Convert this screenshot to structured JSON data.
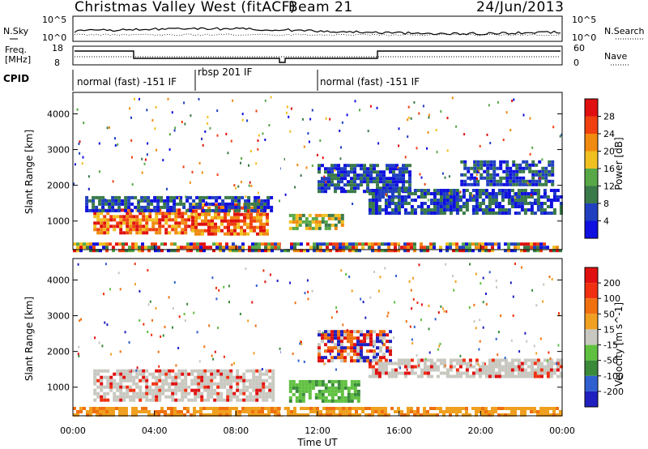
{
  "header": {
    "title": "Christmas Valley West (fitACF)",
    "beam": "Beam 21",
    "date": "24/Jun/2013"
  },
  "panels": {
    "noise": {
      "left_label": "N.Sky",
      "right_label": "N.Search",
      "left_ticks": [
        "10^5",
        "10^0"
      ],
      "right_ticks": [
        "10^5",
        "10^0"
      ]
    },
    "freq": {
      "left_label_1": "Freq.",
      "left_label_2": "[MHz]",
      "right_label": "Nave",
      "left_ticks": [
        "18",
        "8"
      ],
      "right_ticks": [
        "60",
        "0"
      ]
    },
    "cpid": {
      "label": "CPID",
      "segments": [
        {
          "text": "normal (fast) -151 IF",
          "start_hour": 0.0,
          "end_hour": 6.05
        },
        {
          "text": "rbsp 201 IF",
          "start_hour": 6.05,
          "end_hour": 11.3
        },
        {
          "text": "normal (fast) -151 IF",
          "start_hour": 11.3,
          "end_hour": 24.0
        }
      ]
    }
  },
  "chart_data": [
    {
      "type": "heatmap",
      "name": "power",
      "ylabel": "Slant Range [km]",
      "yticks": [
        1000,
        2000,
        3000,
        4000
      ],
      "ylim": [
        200,
        4600
      ],
      "xlim": [
        0,
        24
      ],
      "colorbar": {
        "label": "Power [dB]",
        "ticks": [
          "4",
          "8",
          "12",
          "16",
          "20",
          "24",
          "28"
        ],
        "colors": [
          "#1010e0",
          "#2040c0",
          "#3a7a4a",
          "#58a848",
          "#f0c020",
          "#f08a10",
          "#f04010",
          "#e01010"
        ]
      },
      "bands": [
        {
          "t0": 1.0,
          "t1": 5.8,
          "r0": 650,
          "r1": 1350,
          "level": "high"
        },
        {
          "t0": 5.8,
          "t1": 9.5,
          "r0": 650,
          "r1": 1500,
          "level": "high"
        },
        {
          "t0": 0.6,
          "t1": 9.8,
          "r0": 1300,
          "r1": 1700,
          "level": "low"
        },
        {
          "t0": 10.6,
          "t1": 13.2,
          "r0": 750,
          "r1": 1200,
          "level": "mid"
        },
        {
          "t0": 12.0,
          "t1": 16.5,
          "r0": 1800,
          "r1": 2600,
          "level": "low"
        },
        {
          "t0": 14.5,
          "t1": 24.0,
          "r0": 1200,
          "r1": 1900,
          "level": "low"
        },
        {
          "t0": 19.0,
          "t1": 23.5,
          "r0": 2000,
          "r1": 2700,
          "level": "low"
        },
        {
          "t0": 0.0,
          "t1": 24.0,
          "r0": 200,
          "r1": 400,
          "level": "ground"
        }
      ]
    },
    {
      "type": "heatmap",
      "name": "velocity",
      "ylabel": "Slant Range [km]",
      "xlabel": "Time UT",
      "yticks": [
        1000,
        2000,
        3000,
        4000
      ],
      "xticks": [
        "00:00",
        "04:00",
        "08:00",
        "12:00",
        "16:00",
        "20:00",
        "00:00"
      ],
      "ylim": [
        200,
        4600
      ],
      "xlim": [
        0,
        24
      ],
      "colorbar": {
        "label": "Velocity [m s^-1]",
        "ticks": [
          "200",
          "100",
          "50",
          "15",
          "-15",
          "-50",
          "-100",
          "-200"
        ],
        "colors": [
          "#2020c0",
          "#3060d0",
          "#3a8a3a",
          "#60c040",
          "#c8c8c0",
          "#f0a020",
          "#f07010",
          "#f03010",
          "#e01010"
        ]
      },
      "bands": [
        {
          "t0": 1.0,
          "t1": 9.8,
          "r0": 650,
          "r1": 1500,
          "level": "grey"
        },
        {
          "t0": 10.6,
          "t1": 14.0,
          "r0": 600,
          "r1": 1200,
          "level": "green"
        },
        {
          "t0": 12.0,
          "t1": 15.5,
          "r0": 1700,
          "r1": 2600,
          "level": "mixed"
        },
        {
          "t0": 14.5,
          "t1": 24.0,
          "r0": 1300,
          "r1": 1800,
          "level": "grey"
        },
        {
          "t0": 0.0,
          "t1": 24.0,
          "r0": 200,
          "r1": 450,
          "level": "orange"
        }
      ]
    }
  ]
}
